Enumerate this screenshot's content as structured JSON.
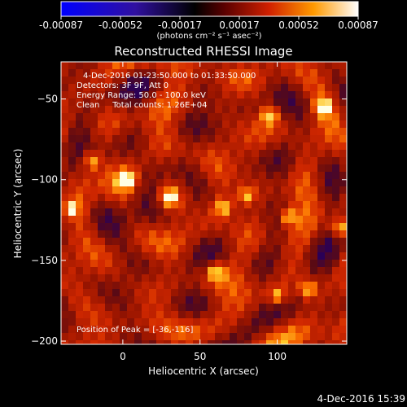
{
  "chart_data": {
    "type": "heatmap",
    "title": "Reconstructed RHESSI Image",
    "xlabel": "Heliocentric X (arcsec)",
    "ylabel": "Heliocentric Y (arcsec)",
    "xlim": [
      -40,
      145
    ],
    "ylim": [
      -202,
      -27
    ],
    "xticks": [
      0,
      50,
      100
    ],
    "yticks": [
      -50,
      -100,
      -150,
      -200
    ],
    "colorbar": {
      "colormap": "blue-black-red-yellow-white",
      "ticks": [
        "-0.00087",
        "-0.00052",
        "-0.00017",
        "0.00017",
        "0.00052",
        "0.00087"
      ],
      "range": [
        -0.00087,
        0.00087
      ],
      "unit_label": "(photons cm⁻² s⁻¹ asec⁻²)"
    },
    "annotations": [
      "4-Dec-2016 01:23:50.000 to 01:33:50.000",
      "Detectors: 3F 9F, Att 0",
      "Energy Range: 50.0 - 100.0 keV",
      "Clean     Total counts: 1.26E+04"
    ],
    "peak_label": "Position of Peak = [-36,-116]",
    "peak": [
      -36,
      -116
    ],
    "bright_spots": [
      {
        "x": -34,
        "y": -118
      },
      {
        "x": 3,
        "y": -100
      },
      {
        "x": 30,
        "y": -111
      },
      {
        "x": 80,
        "y": -110
      },
      {
        "x": 95,
        "y": -60
      },
      {
        "x": 107,
        "y": -123
      },
      {
        "x": 120,
        "y": -168
      },
      {
        "x": 100,
        "y": -172
      },
      {
        "x": 60,
        "y": -157
      },
      {
        "x": 65,
        "y": -117
      },
      {
        "x": -20,
        "y": -88
      },
      {
        "x": 130,
        "y": -55
      },
      {
        "x": 140,
        "y": -130
      }
    ]
  },
  "footer": {
    "datetime": "4-Dec-2016 15:39"
  }
}
